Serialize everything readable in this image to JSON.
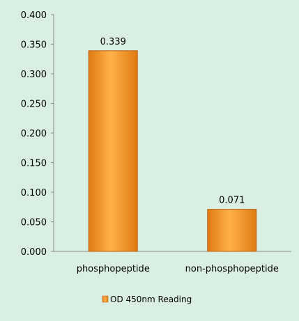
{
  "chart_data": {
    "type": "bar",
    "categories": [
      "phosphopeptide",
      "non-phosphopeptide"
    ],
    "series": [
      {
        "name": "OD 450nm Reading",
        "values": [
          0.339,
          0.071
        ]
      }
    ],
    "data_labels": [
      "0.339",
      "0.071"
    ],
    "y_ticks": [
      "0.000",
      "0.050",
      "0.100",
      "0.150",
      "0.200",
      "0.250",
      "0.300",
      "0.350",
      "0.400"
    ],
    "ylim": [
      0,
      0.4
    ],
    "title": "",
    "xlabel": "",
    "ylabel": "",
    "grid": false,
    "legend_position": "bottom",
    "colors": {
      "bar_light": "#ffb14a",
      "bar_dark": "#e07a12",
      "bar_edge": "#b85c0c",
      "background": "#d9efe4",
      "axis": "#888888",
      "text": "#000000"
    }
  }
}
